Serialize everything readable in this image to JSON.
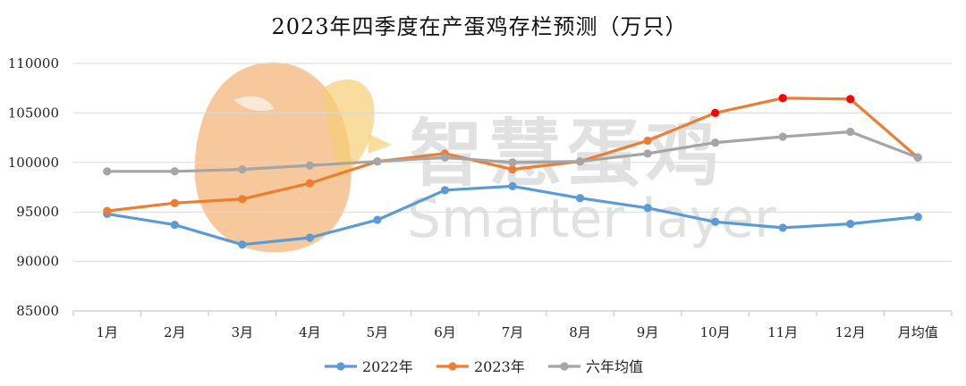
{
  "chart_data": {
    "type": "line",
    "title": "2023年四季度在产蛋鸡存栏预测（万只）",
    "categories": [
      "1月",
      "2月",
      "3月",
      "4月",
      "5月",
      "6月",
      "7月",
      "8月",
      "9月",
      "10月",
      "11月",
      "12月",
      "月均值"
    ],
    "ylim": [
      85000,
      110000
    ],
    "yticks": [
      85000,
      90000,
      95000,
      100000,
      105000,
      110000
    ],
    "grid": true,
    "legend_position": "bottom",
    "series": [
      {
        "name": "2022年",
        "color": "#5b9bd5",
        "values": [
          94800,
          93700,
          91700,
          92400,
          94200,
          97200,
          97600,
          96400,
          95400,
          94000,
          93400,
          93800,
          94500
        ]
      },
      {
        "name": "2023年",
        "color": "#ed7d31",
        "highlight_color": "#ff0000",
        "highlight_indices": [
          9,
          10,
          11
        ],
        "values": [
          95100,
          95900,
          96300,
          97900,
          100100,
          100900,
          99300,
          100100,
          102200,
          105000,
          106500,
          106400,
          100500
        ]
      },
      {
        "name": "六年均值",
        "color": "#a5a5a5",
        "values": [
          99100,
          99100,
          99300,
          99700,
          100100,
          100500,
          100000,
          100100,
          100900,
          102000,
          102600,
          103100,
          100500
        ]
      }
    ]
  },
  "watermark": {
    "text_cn": "智慧蛋鸡",
    "text_en": "Smarter layer",
    "logo": "egg-chick-logo"
  }
}
